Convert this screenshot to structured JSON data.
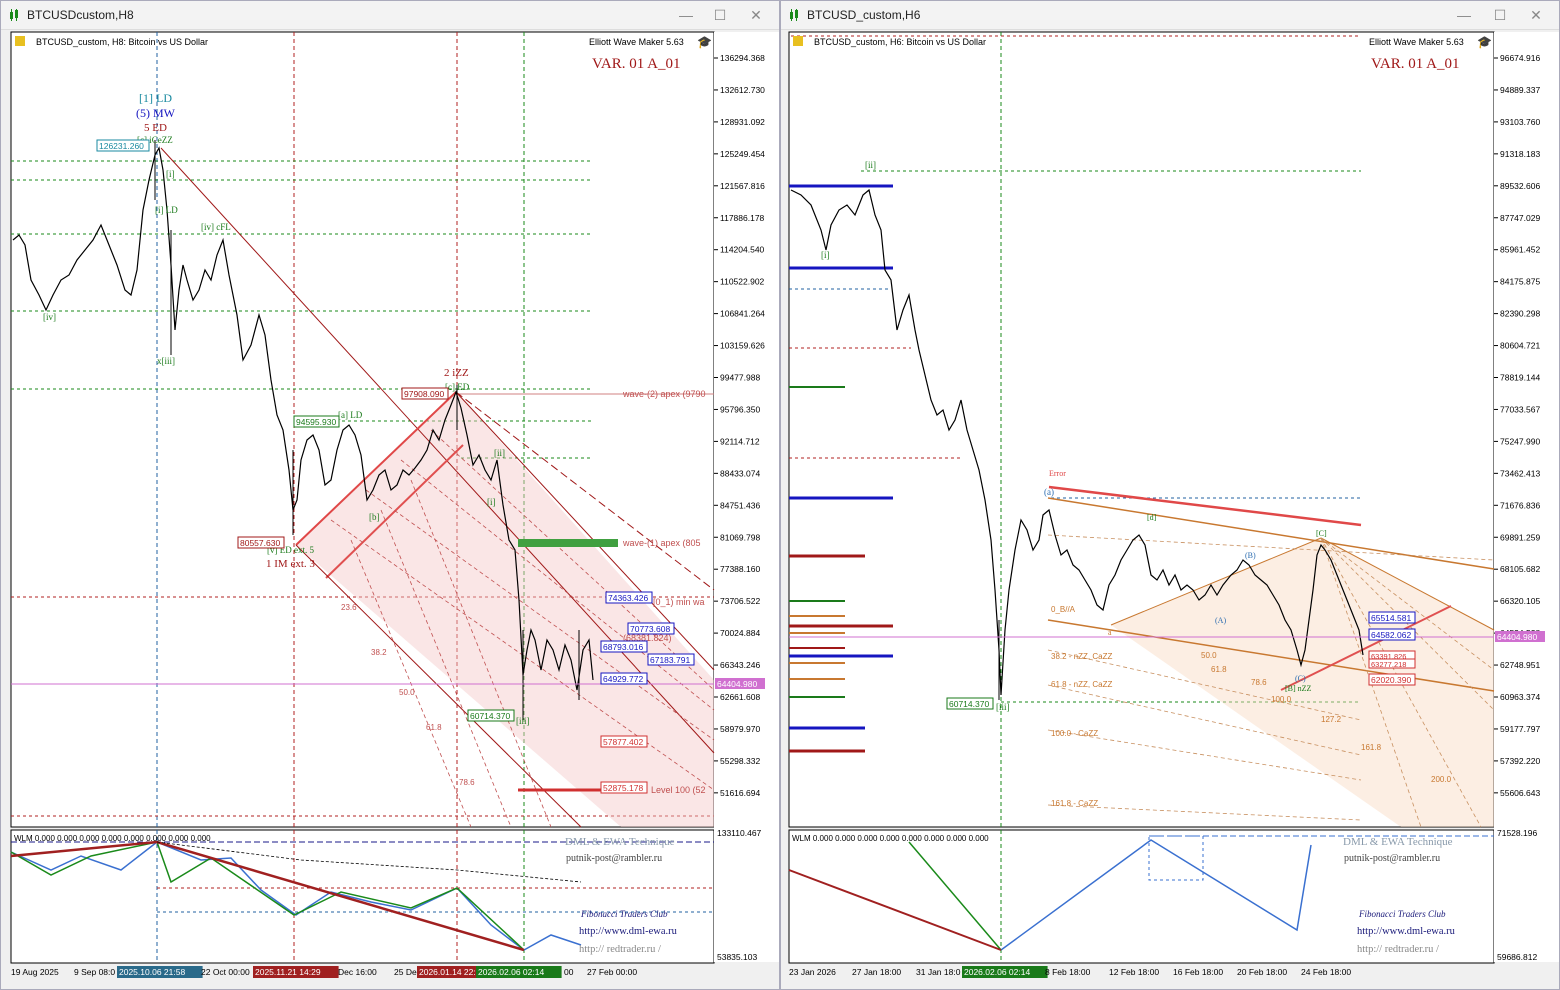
{
  "left": {
    "window_title": "BTCUSDcustom,H8",
    "chart_header": "BTCUSD_custom, H8:  Bitcoin vs US Dollar",
    "ewm_label": "Elliott Wave Maker 5.63",
    "variant": "VAR. 01 A_01",
    "price_axis": [
      "136294.368",
      "132612.730",
      "128931.092",
      "125249.454",
      "121567.816",
      "117886.178",
      "114204.540",
      "110522.902",
      "106841.264",
      "103159.626",
      "99477.988",
      "95796.350",
      "92114.712",
      "88433.074",
      "84751.436",
      "81069.798",
      "77388.160",
      "73706.522",
      "70024.884",
      "66343.246",
      "62661.608",
      "58979.970",
      "55298.332",
      "51616.694"
    ],
    "current_price": "64404.980",
    "price_tags": {
      "high": "126231.260",
      "p94595": "94595.930",
      "p97908": "97908.090",
      "p80557": "80557.630",
      "p74363": "74363.426",
      "p70773": "70773.608",
      "p68793": "68793.016",
      "p67183": "67183.791",
      "p64929": "64929.772",
      "p60714": "60714.370",
      "p57877": "57877.402",
      "p52876": "52875.178"
    },
    "wave_labels": {
      "top1": "[1] LD",
      "top2": "(5) MW",
      "top3": "5 ED",
      "top4": "[c] iCeZZ",
      "l_i": "[i]",
      "l_iLD": "[i] LD",
      "l_ivcFL": "[iv] cFL",
      "l_iv": "[iv]",
      "l_xiii": "x[iii]",
      "l_aLD": "[a] LD",
      "l_b": "[b]",
      "l_2izz": "2 iZZ",
      "l_cED": "[c] ED",
      "l_vED": "[v] ED ext. 5",
      "l_1IM": "1 IM ext. 3",
      "l_ii": "[ii]",
      "l_i2": "[i]",
      "l_iii": "[iii]"
    },
    "annotations": {
      "apex2": "wave-(2) apex (9790",
      "apex1": "wave-(1) apex (805",
      "min_w": "[0_1) min wa",
      "p1824": "(68381.824)",
      "level100": "Level 100 (52",
      "fib1": "23.6",
      "fib2": "38.2",
      "fib3": "50.0",
      "fib4": "61.8",
      "fib5": "78.6"
    },
    "indicator": {
      "title": "WLM 0.000 0.000 0.000 0.000 0.000 0.000 0.000 0.000",
      "axis_top": "133110.467",
      "axis_bottom": "53835.103",
      "dml": "DML & EWA Technique",
      "email": "putnik-post@rambler.ru",
      "ftc": "Fibonacci    Traders    Club",
      "url1": "http://www.dml-ewa.ru",
      "url2": "http:// redtrader.ru /"
    },
    "time_axis": [
      "19 Aug 2025",
      "9 Sep 08:0",
      "2025.10.06 21:58",
      "22 Oct 00:00",
      "2025.11.21 14:29",
      "Dec 16:00",
      "25 De",
      "2026.01.14 22:",
      "2026.02.06 02:14",
      "00",
      "27 Feb 00:00"
    ]
  },
  "right": {
    "window_title": "BTCUSD_custom,H6",
    "chart_header": "BTCUSD_custom, H6:  Bitcoin vs US Dollar",
    "ewm_label": "Elliott Wave Maker 5.63",
    "variant": "VAR. 01 A_01",
    "price_axis": [
      "96674.916",
      "94889.337",
      "93103.760",
      "91318.183",
      "89532.606",
      "87747.029",
      "85961.452",
      "84175.875",
      "82390.298",
      "80604.721",
      "78819.144",
      "77033.567",
      "75247.990",
      "73462.413",
      "71676.836",
      "69891.259",
      "68105.682",
      "66320.105",
      "64534.528",
      "62748.951",
      "60963.374",
      "59177.797",
      "57392.220",
      "55606.643"
    ],
    "current_price": "64404.980",
    "price_tags": {
      "p65514": "65514.581",
      "p64582": "64582.062",
      "p63391": "63391.826",
      "p63277": "63277.218",
      "p62020": "62020.390",
      "p60714": "60714.370"
    },
    "wave_labels": {
      "ii": "[ii]",
      "i": "[i]",
      "iii": "[iii]",
      "a_label": "(a)",
      "a_small": "a",
      "A": "(A)",
      "B": "(B)",
      "Bb": "[B]",
      "C": "(C)",
      "Cbr": "[C]",
      "c_nzz": "[B] nZZ",
      "d": "[d]",
      "error": "Error"
    },
    "annotations": {
      "f382": "38.2 - nZZ, CaZZ",
      "f618": "61.8 - nZZ, CaZZ",
      "f1000": "100.0 - CaZZ",
      "f1618": "161.8 - CaZZ",
      "ob": "0_B//A",
      "f50": "50.0",
      "f618b": "61.8",
      "f786": "78.6",
      "f100": "100.0",
      "f1272": "127.2",
      "f1618b": "161.8",
      "f200": "200.0"
    },
    "indicator": {
      "title": "WLM 0.000 0.000 0.000 0.000 0.000 0.000 0.000 0.000",
      "axis_top": "71528.196",
      "axis_bottom": "59686.812",
      "dml": "DML & EWA Technique",
      "email": "putnik-post@rambler.ru",
      "ftc": "Fibonacci    Traders    Club",
      "url1": "http://www.dml-ewa.ru",
      "url2": "http:// redtrader.ru /"
    },
    "time_axis": [
      "23 Jan 2026",
      "27 Jan 18:00",
      "31 Jan 18:0",
      "2026.02.06 02:14",
      "8 Feb 18:00",
      "12 Feb 18:00",
      "16 Feb 18:00",
      "20 Feb 18:00",
      "24 Feb 18:00"
    ]
  },
  "colors": {
    "ewm_icon": "#2b6cb0",
    "variant": "#a01818",
    "current_price": "#d070d0",
    "red_channel": "#b01818",
    "green": "#1a7a1a",
    "blue": "#1515c0",
    "orange": "#c87830"
  }
}
